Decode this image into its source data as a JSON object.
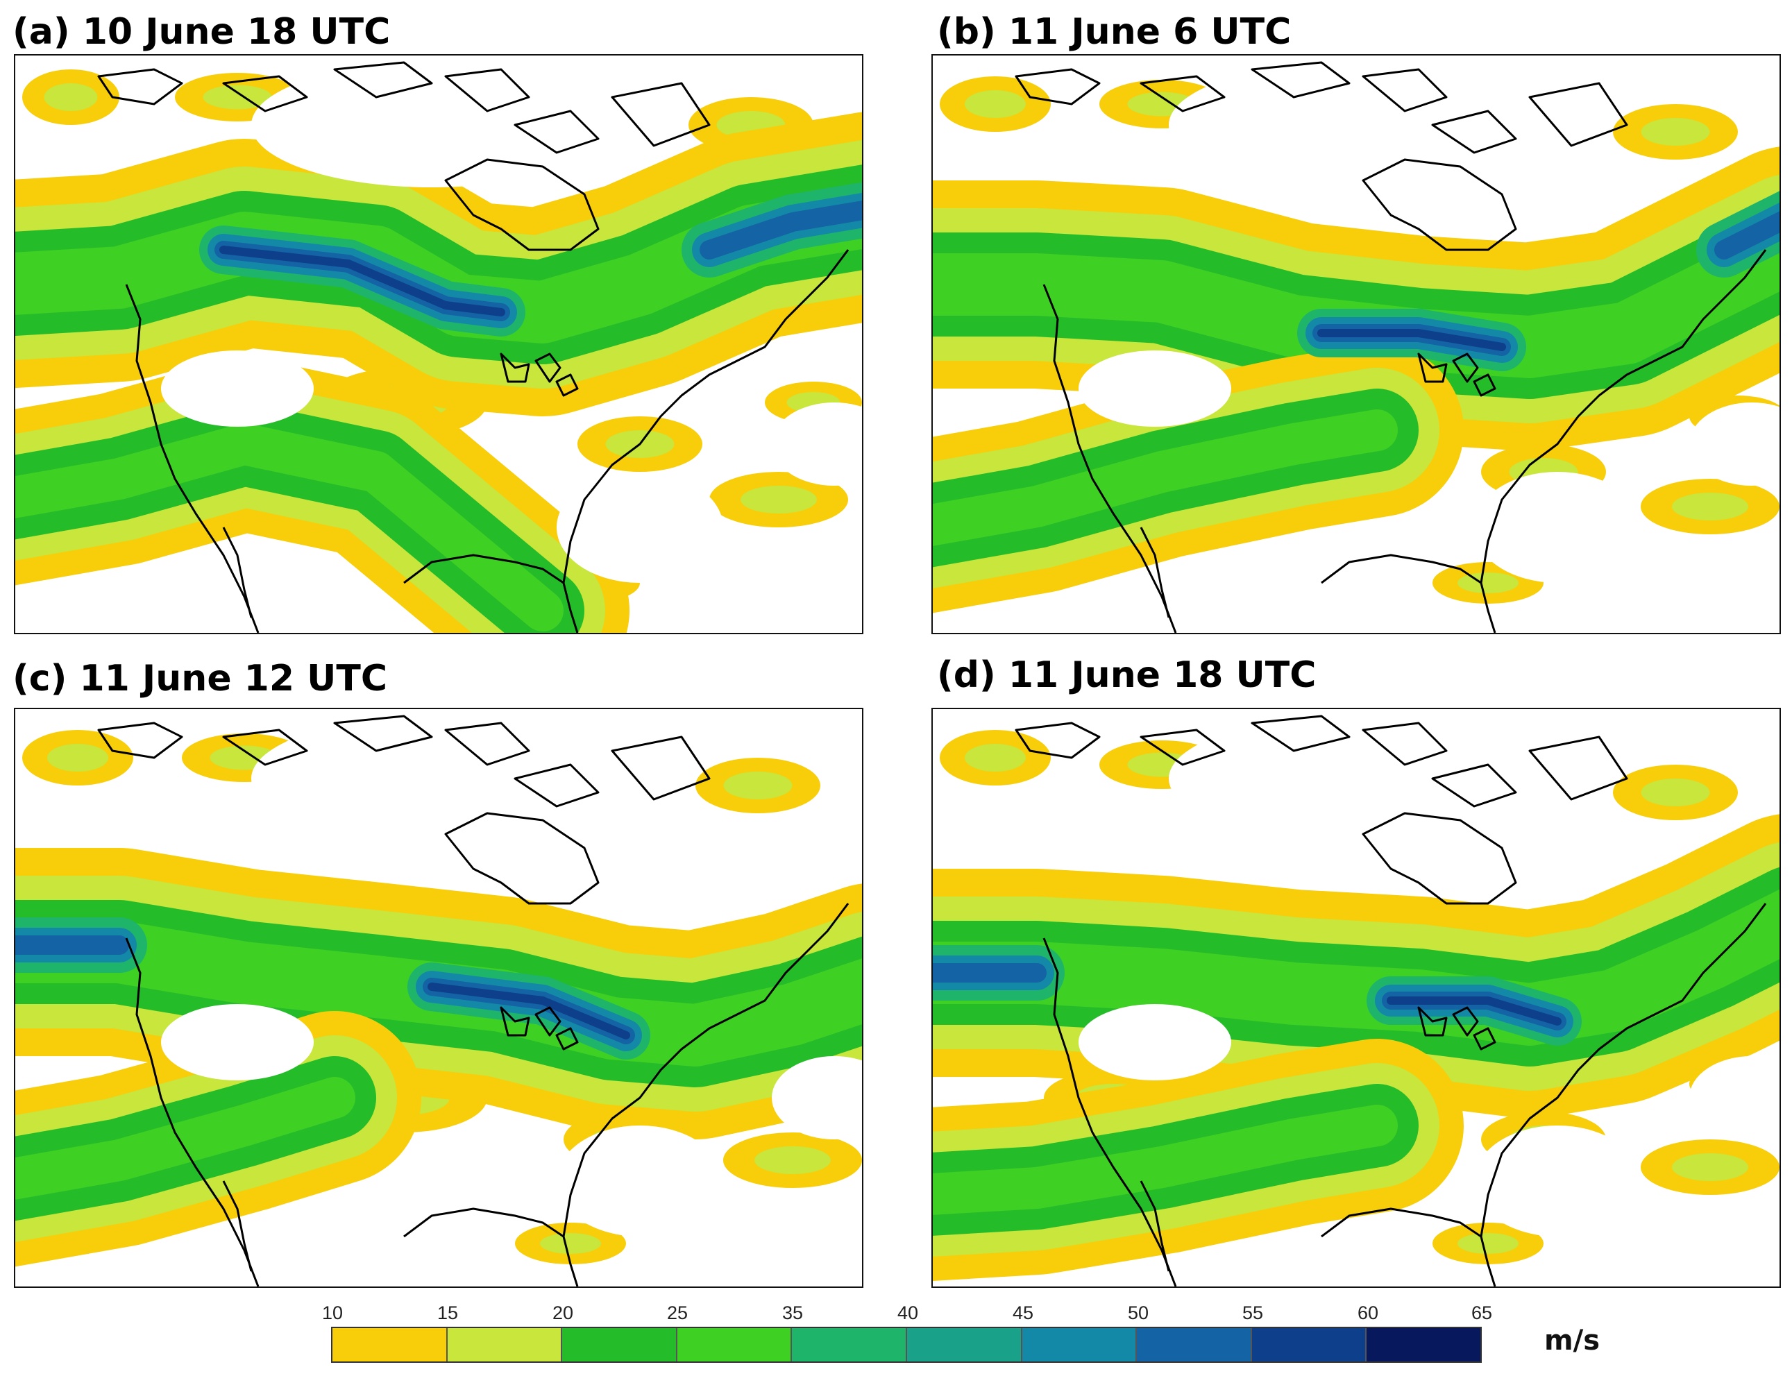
{
  "figure": {
    "panels": [
      {
        "id": "a",
        "title": "(a) 10 June 18 UTC"
      },
      {
        "id": "b",
        "title": "(b) 11 June 6 UTC"
      },
      {
        "id": "c",
        "title": "(c) 11 June 12 UTC"
      },
      {
        "id": "d",
        "title": "(d) 11 June 18 UTC"
      }
    ],
    "colorbar": {
      "ticks": [
        "10",
        "15",
        "20",
        "25",
        "35",
        "40",
        "45",
        "50",
        "55",
        "60",
        "65"
      ],
      "colors": [
        "#f8cd0a",
        "#c8e63c",
        "#25bc2a",
        "#3fd024",
        "#1eb56b",
        "#1aa18a",
        "#1489a7",
        "#1463a4",
        "#0d3f8a",
        "#07195c"
      ],
      "unit": "m/s"
    },
    "colors": {
      "land_outline": "#000000",
      "white_contour": "#ffffff",
      "background": "#ffffff"
    }
  }
}
